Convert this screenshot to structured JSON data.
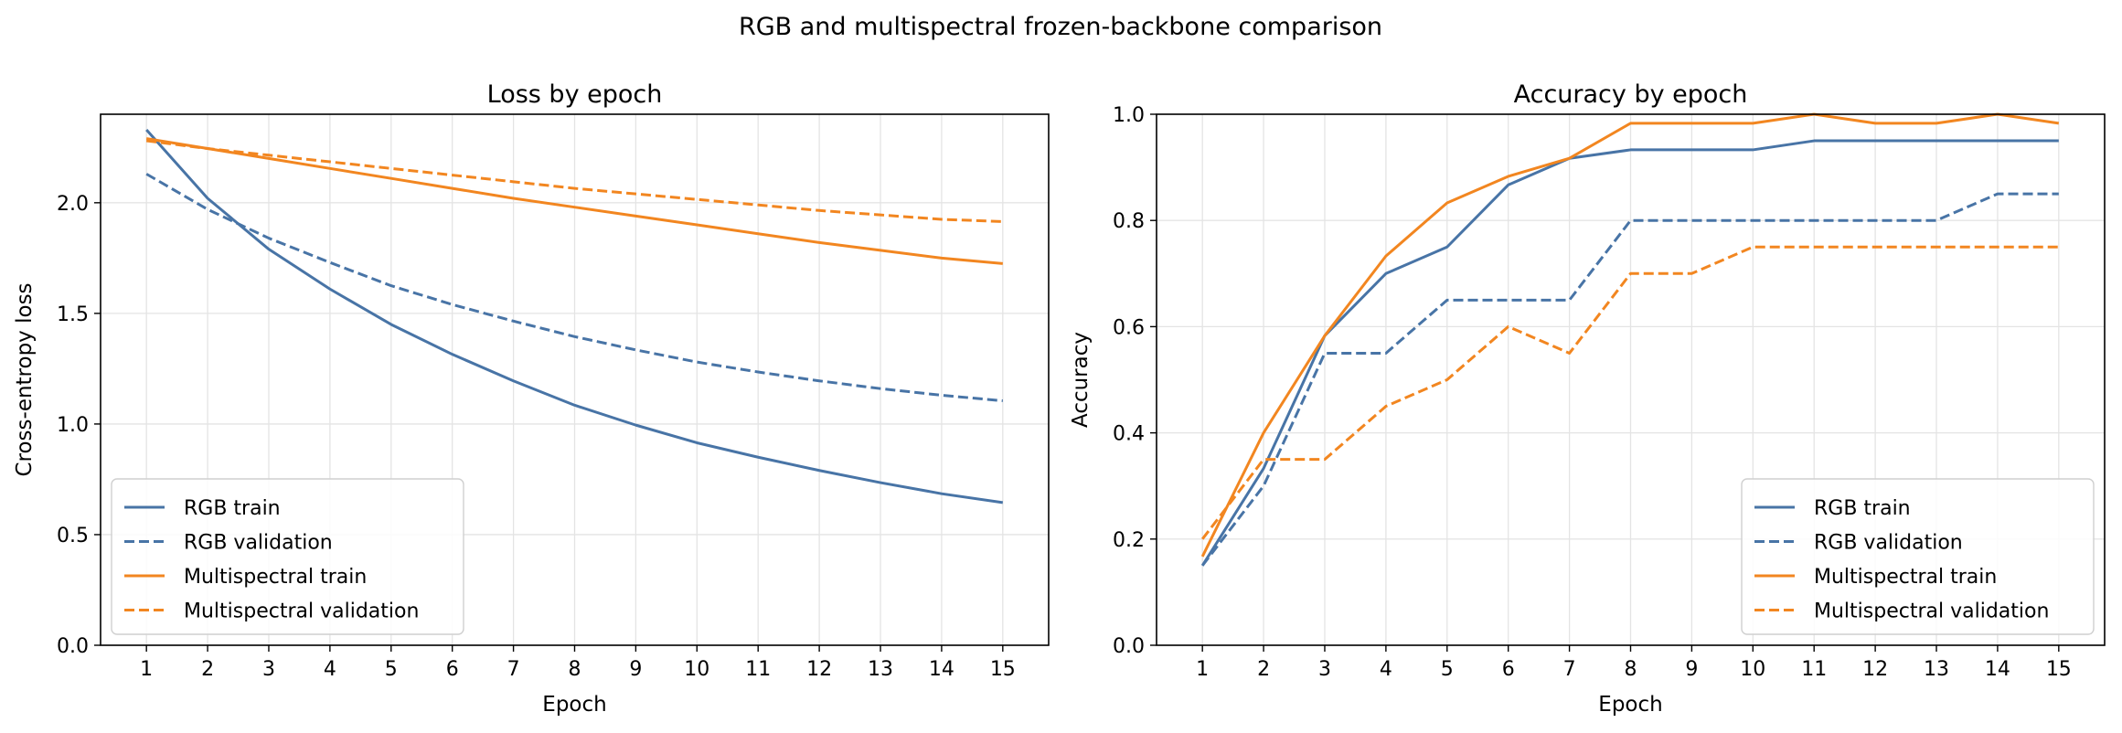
{
  "figure": {
    "suptitle": "RGB and multispectral frozen-backbone comparison",
    "colors": {
      "rgb": "#4874a6",
      "multispectral": "#f28620"
    }
  },
  "chart_data": [
    {
      "type": "line",
      "title": "Loss by epoch",
      "xlabel": "Epoch",
      "ylabel": "Cross-entropy loss",
      "x": [
        1,
        2,
        3,
        4,
        5,
        6,
        7,
        8,
        9,
        10,
        11,
        12,
        13,
        14,
        15
      ],
      "xlim": [
        0.25,
        15.75
      ],
      "ylim": [
        0,
        2.4
      ],
      "yticks": [
        0.0,
        0.5,
        1.0,
        1.5,
        2.0
      ],
      "ytick_labels": [
        "0.0",
        "0.5",
        "1.0",
        "1.5",
        "2.0"
      ],
      "grid": true,
      "legend_position": "lower-left",
      "series": [
        {
          "name": "RGB train",
          "color": "#4874a6",
          "style": "solid",
          "values": [
            2.33,
            2.02,
            1.79,
            1.61,
            1.45,
            1.315,
            1.195,
            1.085,
            0.995,
            0.915,
            0.85,
            0.79,
            0.735,
            0.685,
            0.645
          ]
        },
        {
          "name": "RGB validation",
          "color": "#4874a6",
          "style": "dashed",
          "values": [
            2.13,
            1.97,
            1.84,
            1.73,
            1.625,
            1.54,
            1.465,
            1.395,
            1.335,
            1.28,
            1.235,
            1.195,
            1.16,
            1.13,
            1.105
          ]
        },
        {
          "name": "Multispectral train",
          "color": "#f28620",
          "style": "solid",
          "values": [
            2.29,
            2.245,
            2.2,
            2.155,
            2.11,
            2.065,
            2.02,
            1.98,
            1.94,
            1.9,
            1.86,
            1.82,
            1.785,
            1.75,
            1.725
          ]
        },
        {
          "name": "Multispectral validation",
          "color": "#f28620",
          "style": "dashed",
          "values": [
            2.28,
            2.245,
            2.215,
            2.185,
            2.155,
            2.125,
            2.095,
            2.065,
            2.04,
            2.015,
            1.99,
            1.965,
            1.945,
            1.925,
            1.915
          ]
        }
      ]
    },
    {
      "type": "line",
      "title": "Accuracy by epoch",
      "xlabel": "Epoch",
      "ylabel": "Accuracy",
      "x": [
        1,
        2,
        3,
        4,
        5,
        6,
        7,
        8,
        9,
        10,
        11,
        12,
        13,
        14,
        15
      ],
      "xlim": [
        0.25,
        15.75
      ],
      "ylim": [
        0,
        1.0
      ],
      "yticks": [
        0.0,
        0.2,
        0.4,
        0.6,
        0.8,
        1.0
      ],
      "ytick_labels": [
        "0.0",
        "0.2",
        "0.4",
        "0.6",
        "0.8",
        "1.0"
      ],
      "grid": true,
      "legend_position": "lower-right",
      "series": [
        {
          "name": "RGB train",
          "color": "#4874a6",
          "style": "solid",
          "values": [
            0.15,
            0.333,
            0.583,
            0.7,
            0.75,
            0.867,
            0.917,
            0.933,
            0.933,
            0.933,
            0.95,
            0.95,
            0.95,
            0.95,
            0.95
          ]
        },
        {
          "name": "RGB validation",
          "color": "#4874a6",
          "style": "dashed",
          "values": [
            0.15,
            0.3,
            0.55,
            0.55,
            0.65,
            0.65,
            0.65,
            0.8,
            0.8,
            0.8,
            0.8,
            0.8,
            0.8,
            0.85,
            0.85
          ]
        },
        {
          "name": "Multispectral train",
          "color": "#f28620",
          "style": "solid",
          "values": [
            0.167,
            0.4,
            0.583,
            0.733,
            0.833,
            0.883,
            0.917,
            0.983,
            0.983,
            0.983,
            1.0,
            0.983,
            0.983,
            1.0,
            0.983
          ]
        },
        {
          "name": "Multispectral validation",
          "color": "#f28620",
          "style": "dashed",
          "values": [
            0.2,
            0.35,
            0.35,
            0.45,
            0.5,
            0.6,
            0.55,
            0.7,
            0.7,
            0.75,
            0.75,
            0.75,
            0.75,
            0.75,
            0.75
          ]
        }
      ]
    }
  ]
}
